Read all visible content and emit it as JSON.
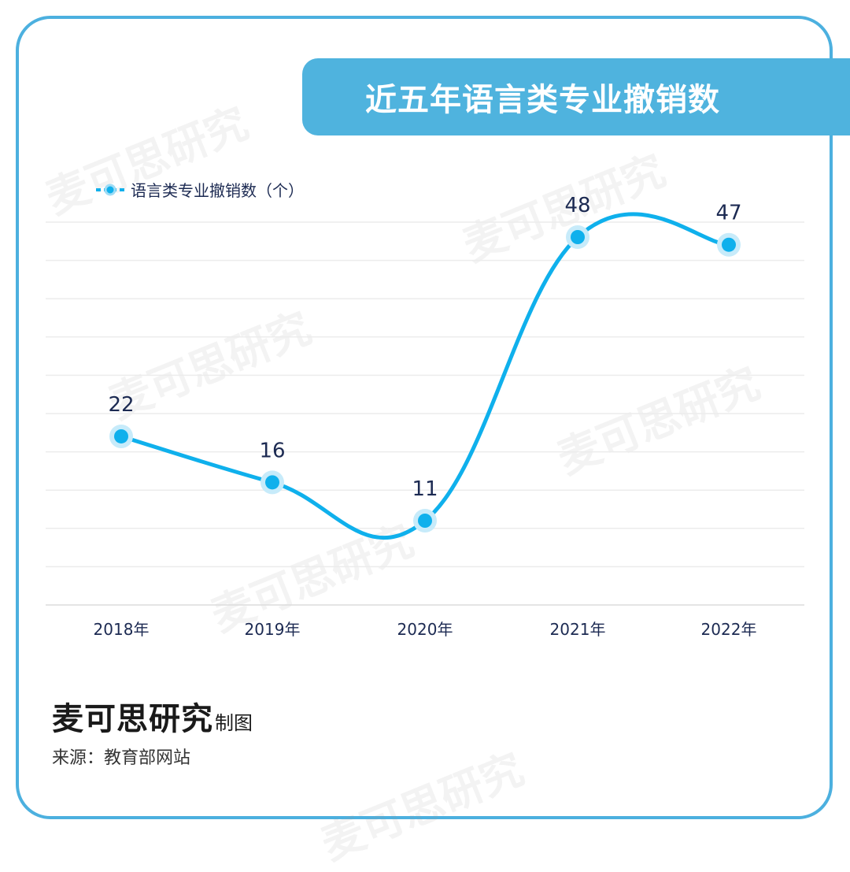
{
  "title": "近五年语言类专业撤销数",
  "watermark_text": "麦可思研究",
  "footer": {
    "brand": "麦可思研究",
    "brand_suffix": "制图",
    "source": "来源：教育部网站"
  },
  "colors": {
    "accent": "#4fb3de",
    "line": "#0fb0ec",
    "text_dark": "#1c2a52"
  },
  "chart_data": {
    "type": "line",
    "categories": [
      "2018年",
      "2019年",
      "2020年",
      "2021年",
      "2022年"
    ],
    "series": [
      {
        "name": "语言类专业撤销数（个）",
        "values": [
          22,
          16,
          11,
          48,
          47
        ]
      }
    ],
    "legend_position": "top-left",
    "grid": true,
    "data_labels": true
  }
}
